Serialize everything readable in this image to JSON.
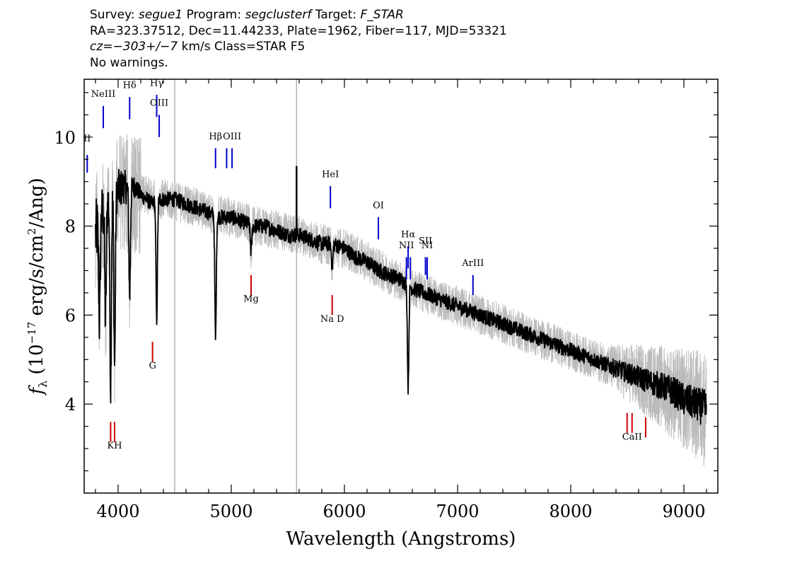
{
  "header": {
    "line1": [
      {
        "text": "Survey: ",
        "italic": false
      },
      {
        "text": "segue1",
        "italic": true
      },
      {
        "text": " Program: ",
        "italic": false
      },
      {
        "text": "segclusterf",
        "italic": true
      },
      {
        "text": " Target: ",
        "italic": false
      },
      {
        "text": "F_STAR",
        "italic": true
      }
    ],
    "line2": "RA=323.37512, Dec=11.44233, Plate=1962, Fiber=117, MJD=53321",
    "line3": [
      {
        "text": "cz=−303+/−7",
        "italic": true
      },
      {
        "text": " km/s Class=STAR F5",
        "italic": false
      }
    ],
    "line4": "No warnings."
  },
  "chart_data": {
    "type": "line",
    "xlabel": "Wavelength (Angstroms)",
    "ylabel": "f_λ (10^-17 erg/s/cm^2/Ang)",
    "xlim": [
      3700,
      9300
    ],
    "ylim": [
      2.0,
      11.3
    ],
    "xticks": [
      4000,
      5000,
      6000,
      7000,
      8000,
      9000
    ],
    "yticks": [
      4,
      6,
      8,
      10
    ],
    "grid": false,
    "series": [
      {
        "role": "flux",
        "color": "#000000",
        "x": [
          3800,
          3850,
          3900,
          3950,
          4000,
          4050,
          4100,
          4150,
          4200,
          4250,
          4300,
          4350,
          4400,
          4500,
          4600,
          4700,
          4800,
          4900,
          5000,
          5100,
          5200,
          5300,
          5400,
          5500,
          5600,
          5700,
          5800,
          5900,
          6000,
          6100,
          6200,
          6300,
          6400,
          6500,
          6600,
          6700,
          6800,
          6900,
          7000,
          7100,
          7200,
          7300,
          7400,
          7500,
          7600,
          7700,
          7800,
          7900,
          8000,
          8100,
          8200,
          8300,
          8400,
          8500,
          8600,
          8700,
          8800,
          8900,
          9000,
          9100,
          9200
        ],
        "y": [
          7.8,
          8.2,
          8.5,
          8.7,
          8.8,
          8.9,
          8.8,
          8.9,
          8.7,
          8.6,
          8.5,
          8.6,
          8.6,
          8.6,
          8.5,
          8.4,
          8.3,
          8.2,
          8.2,
          8.1,
          8.0,
          8.0,
          7.9,
          7.8,
          7.8,
          7.7,
          7.6,
          7.6,
          7.5,
          7.3,
          7.2,
          7.0,
          6.9,
          6.8,
          6.6,
          6.5,
          6.4,
          6.3,
          6.2,
          6.1,
          6.0,
          5.9,
          5.8,
          5.7,
          5.6,
          5.5,
          5.4,
          5.3,
          5.2,
          5.1,
          5.0,
          4.9,
          4.8,
          4.7,
          4.6,
          4.5,
          4.4,
          4.3,
          4.1,
          4.0,
          3.9
        ]
      },
      {
        "role": "model",
        "color": "#bbbbbb",
        "x": [
          3800,
          4000,
          4200,
          4400,
          4600,
          4800,
          5000,
          5200,
          5400,
          5600,
          5800,
          6000,
          6200,
          6400,
          6600,
          6800,
          7000,
          7200,
          7400,
          7600,
          7800,
          8000,
          8200,
          8400,
          8600,
          8800,
          9000,
          9200
        ],
        "y": [
          7.9,
          8.8,
          8.7,
          8.6,
          8.5,
          8.3,
          8.2,
          8.0,
          7.9,
          7.8,
          7.6,
          7.5,
          7.2,
          6.9,
          6.6,
          6.4,
          6.2,
          6.0,
          5.8,
          5.6,
          5.4,
          5.2,
          5.0,
          4.8,
          4.6,
          4.4,
          4.1,
          3.9
        ]
      }
    ],
    "absorption_features": [
      {
        "x": 3934,
        "depth": 4.2
      },
      {
        "x": 3969,
        "depth": 3.9
      },
      {
        "x": 3889,
        "depth": 2.6
      },
      {
        "x": 3835,
        "depth": 2.2
      },
      {
        "x": 4102,
        "depth": 2.4
      },
      {
        "x": 4341,
        "depth": 2.7
      },
      {
        "x": 4861,
        "depth": 2.8
      },
      {
        "x": 5175,
        "depth": 0.6
      },
      {
        "x": 5892,
        "depth": 0.5
      },
      {
        "x": 6563,
        "depth": 2.3
      }
    ],
    "vertical_lines": [
      {
        "x": 4500,
        "color": "#b4b4b4"
      },
      {
        "x": 5577,
        "color": "#b4b4b4"
      }
    ],
    "emission_lines": [
      {
        "x": 3727,
        "label": "OII",
        "shown_label": "II",
        "y0": 9.6,
        "y1": 9.2,
        "label_y": 9.9,
        "color": "#0000cc"
      },
      {
        "x": 3869,
        "label": "NeIII",
        "y0": 10.7,
        "y1": 10.2,
        "label_y": 10.9,
        "color": "#0000cc"
      },
      {
        "x": 4102,
        "label": "Hδ",
        "y0": 10.9,
        "y1": 10.4,
        "label_y": 11.1,
        "color": "#0000cc"
      },
      {
        "x": 4341,
        "label": "Hγ",
        "y0": 10.95,
        "y1": 10.45,
        "label_y": 11.15,
        "color": "#0000cc"
      },
      {
        "x": 4363,
        "label": "OIII",
        "y0": 10.5,
        "y1": 10.0,
        "label_y": 10.7,
        "color": "#0000cc"
      },
      {
        "x": 4861,
        "label": "Hβ",
        "y0": 9.75,
        "y1": 9.3,
        "label_y": 9.95,
        "color": "#0000cc"
      },
      {
        "x": 4959,
        "label": "",
        "y0": 9.75,
        "y1": 9.3,
        "label_y": 9.95,
        "color": "#0000cc"
      },
      {
        "x": 5007,
        "label": "OIII",
        "y0": 9.75,
        "y1": 9.3,
        "label_y": 9.95,
        "color": "#0000cc"
      },
      {
        "x": 5876,
        "label": "HeI",
        "y0": 8.9,
        "y1": 8.4,
        "label_y": 9.1,
        "color": "#0000cc"
      },
      {
        "x": 6300,
        "label": "OI",
        "y0": 8.2,
        "y1": 7.7,
        "label_y": 8.4,
        "color": "#0000cc"
      },
      {
        "x": 6548,
        "label": "NII",
        "y0": 7.3,
        "y1": 6.8,
        "label_y": 7.5,
        "color": "#0000cc"
      },
      {
        "x": 6563,
        "label": "Hα",
        "y0": 7.55,
        "y1": 7.05,
        "label_y": 7.75,
        "color": "#0000cc"
      },
      {
        "x": 6583,
        "label": "",
        "y0": 7.3,
        "y1": 6.8,
        "label_y": 7.5,
        "color": "#0000cc"
      },
      {
        "x": 6716,
        "label": "SII",
        "y0": 7.3,
        "y1": 6.9,
        "label_y": 7.6,
        "color": "#0000cc"
      },
      {
        "x": 6731,
        "label": "NII",
        "shown_label": "NI",
        "y0": 7.3,
        "y1": 6.8,
        "label_y": 7.5,
        "color": "#0000cc"
      },
      {
        "x": 7136,
        "label": "ArIII",
        "y0": 6.9,
        "y1": 6.45,
        "label_y": 7.1,
        "color": "#0000cc"
      }
    ],
    "absorption_lines": [
      {
        "x": 3934,
        "label": "",
        "y0": 3.6,
        "y1": 3.15,
        "label_y": 3.0,
        "color": "#cc0000"
      },
      {
        "x": 3969,
        "label": "KH",
        "y0": 3.6,
        "y1": 3.15,
        "label_y": 3.0,
        "color": "#cc0000"
      },
      {
        "x": 4304,
        "label": "G",
        "y0": 5.4,
        "y1": 4.95,
        "label_y": 4.8,
        "color": "#cc0000"
      },
      {
        "x": 5175,
        "label": "Mg",
        "y0": 6.9,
        "y1": 6.45,
        "label_y": 6.3,
        "color": "#cc0000"
      },
      {
        "x": 5892,
        "label": "Na D",
        "y0": 6.45,
        "y1": 6.0,
        "label_y": 5.85,
        "color": "#cc0000"
      },
      {
        "x": 8498,
        "label": "",
        "y0": 3.8,
        "y1": 3.35,
        "label_y": 3.2,
        "color": "#cc0000"
      },
      {
        "x": 8542,
        "label": "CaII",
        "y0": 3.8,
        "y1": 3.35,
        "label_y": 3.2,
        "color": "#cc0000"
      },
      {
        "x": 8662,
        "label": "",
        "y0": 3.7,
        "y1": 3.25,
        "label_y": 3.2,
        "color": "#cc0000"
      }
    ]
  }
}
